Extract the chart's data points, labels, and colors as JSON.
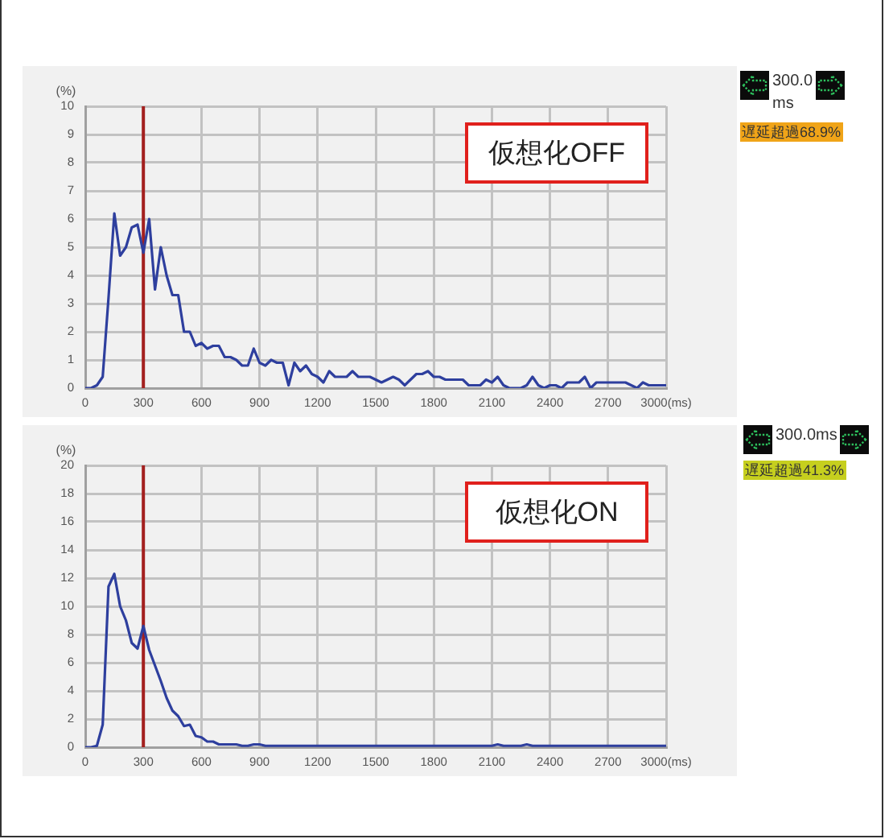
{
  "chart_data": [
    {
      "type": "line",
      "ylabel": "(%)",
      "annotations": [
        "仮想化OFF",
        "300.0 ms",
        "遅延超過68.9%"
      ],
      "x": [
        0,
        30,
        60,
        90,
        120,
        150,
        180,
        210,
        240,
        270,
        300,
        330,
        360,
        390,
        420,
        450,
        480,
        510,
        540,
        570,
        600,
        630,
        660,
        690,
        720,
        750,
        780,
        810,
        840,
        870,
        900,
        930,
        960,
        990,
        1020,
        1050,
        1080,
        1110,
        1140,
        1170,
        1200,
        1230,
        1260,
        1290,
        1320,
        1350,
        1380,
        1410,
        1440,
        1470,
        1500,
        1530,
        1560,
        1590,
        1620,
        1650,
        1680,
        1710,
        1740,
        1770,
        1800,
        1830,
        1860,
        1890,
        1920,
        1950,
        1980,
        2010,
        2040,
        2070,
        2100,
        2130,
        2160,
        2190,
        2220,
        2250,
        2280,
        2310,
        2340,
        2370,
        2400,
        2430,
        2460,
        2490,
        2520,
        2550,
        2580,
        2610,
        2640,
        2670,
        2700,
        2730,
        2760,
        2790,
        2820,
        2850,
        2880,
        2910,
        2940,
        2970,
        3000
      ],
      "series": [
        {
          "color": "#2e3f9e",
          "values": [
            0,
            0,
            0.1,
            0.4,
            3.2,
            6.2,
            4.7,
            5.0,
            5.7,
            5.8,
            4.8,
            6.0,
            3.5,
            5.0,
            4.0,
            3.3,
            3.3,
            2.0,
            2.0,
            1.5,
            1.6,
            1.4,
            1.5,
            1.5,
            1.1,
            1.1,
            1.0,
            0.8,
            0.8,
            1.4,
            0.9,
            0.8,
            1.0,
            0.9,
            0.9,
            0.1,
            0.9,
            0.6,
            0.8,
            0.5,
            0.4,
            0.2,
            0.6,
            0.4,
            0.4,
            0.4,
            0.6,
            0.4,
            0.4,
            0.4,
            0.3,
            0.2,
            0.3,
            0.4,
            0.3,
            0.1,
            0.3,
            0.5,
            0.5,
            0.6,
            0.4,
            0.4,
            0.3,
            0.3,
            0.3,
            0.3,
            0.1,
            0.1,
            0.1,
            0.3,
            0.2,
            0.4,
            0.1,
            0,
            0,
            0,
            0.1,
            0.4,
            0.1,
            0,
            0.1,
            0.1,
            0,
            0.2,
            0.2,
            0.2,
            0.4,
            0,
            0.2,
            0.2,
            0.2,
            0.2,
            0.2,
            0.2,
            0.1,
            0,
            0.2,
            0.1,
            0.1,
            0.1,
            0.1
          ]
        }
      ],
      "xlim": [
        0,
        3000
      ],
      "ylim": [
        0,
        10
      ],
      "xticks": [
        0,
        300,
        600,
        900,
        1200,
        1500,
        1800,
        2100,
        2400,
        2700,
        {
          "value": 3000,
          "label": "3000(ms)"
        }
      ],
      "yticks": [
        0,
        1,
        2,
        3,
        4,
        5,
        6,
        7,
        8,
        9,
        10
      ],
      "grid": true,
      "ref_lines": [
        {
          "axis": "x",
          "value": 300,
          "color": "#a3201f"
        }
      ]
    },
    {
      "type": "line",
      "ylabel": "(%)",
      "annotations": [
        "仮想化ON",
        "300.0ms",
        "遅延超過41.3%"
      ],
      "x": [
        0,
        30,
        60,
        90,
        120,
        150,
        180,
        210,
        240,
        270,
        300,
        330,
        360,
        390,
        420,
        450,
        480,
        510,
        540,
        570,
        600,
        630,
        660,
        690,
        720,
        750,
        780,
        810,
        840,
        870,
        900,
        930,
        960,
        990,
        1020,
        1050,
        1080,
        1110,
        1140,
        1170,
        1200,
        1230,
        1260,
        1290,
        1320,
        1350,
        1380,
        1410,
        1440,
        1470,
        1500,
        1530,
        1560,
        1590,
        1620,
        1650,
        1680,
        1710,
        1740,
        1770,
        1800,
        1830,
        1860,
        1890,
        1920,
        1950,
        1980,
        2010,
        2040,
        2070,
        2100,
        2130,
        2160,
        2190,
        2220,
        2250,
        2280,
        2310,
        2340,
        2370,
        2400,
        2430,
        2460,
        2490,
        2520,
        2550,
        2580,
        2610,
        2640,
        2670,
        2700,
        2730,
        2760,
        2790,
        2820,
        2850,
        2880,
        2910,
        2940,
        2970,
        3000
      ],
      "series": [
        {
          "color": "#2e3f9e",
          "values": [
            0,
            0,
            0.1,
            1.6,
            11.4,
            12.3,
            10.0,
            9.0,
            7.4,
            7.0,
            8.6,
            6.9,
            5.8,
            4.7,
            3.5,
            2.6,
            2.2,
            1.5,
            1.6,
            0.8,
            0.7,
            0.4,
            0.4,
            0.2,
            0.2,
            0.2,
            0.2,
            0.1,
            0.1,
            0.2,
            0.2,
            0.1,
            0.1,
            0.1,
            0.1,
            0.1,
            0.1,
            0.1,
            0.1,
            0.1,
            0.1,
            0.1,
            0.1,
            0.1,
            0.1,
            0.1,
            0.1,
            0.1,
            0.1,
            0.1,
            0.1,
            0.1,
            0.1,
            0.1,
            0.1,
            0.1,
            0.1,
            0.1,
            0.1,
            0.1,
            0.1,
            0.1,
            0.1,
            0.1,
            0.1,
            0.1,
            0.1,
            0.1,
            0.1,
            0.1,
            0.1,
            0.2,
            0.1,
            0.1,
            0.1,
            0.1,
            0.2,
            0.1,
            0.1,
            0.1,
            0.1,
            0.1,
            0.1,
            0.1,
            0.1,
            0.1,
            0.1,
            0.1,
            0.1,
            0.1,
            0.1,
            0.1,
            0.1,
            0.1,
            0.1,
            0.1,
            0.1,
            0.1,
            0.1,
            0.1,
            0.1
          ]
        }
      ],
      "xlim": [
        0,
        3000
      ],
      "ylim": [
        0,
        20
      ],
      "xticks": [
        0,
        300,
        600,
        900,
        1200,
        1500,
        1800,
        2100,
        2400,
        2700,
        {
          "value": 3000,
          "label": "3000(ms)"
        }
      ],
      "yticks": [
        0,
        2,
        4,
        6,
        8,
        10,
        12,
        14,
        16,
        18,
        20
      ],
      "grid": true,
      "ref_lines": [
        {
          "axis": "x",
          "value": 300,
          "color": "#a3201f"
        }
      ]
    }
  ]
}
